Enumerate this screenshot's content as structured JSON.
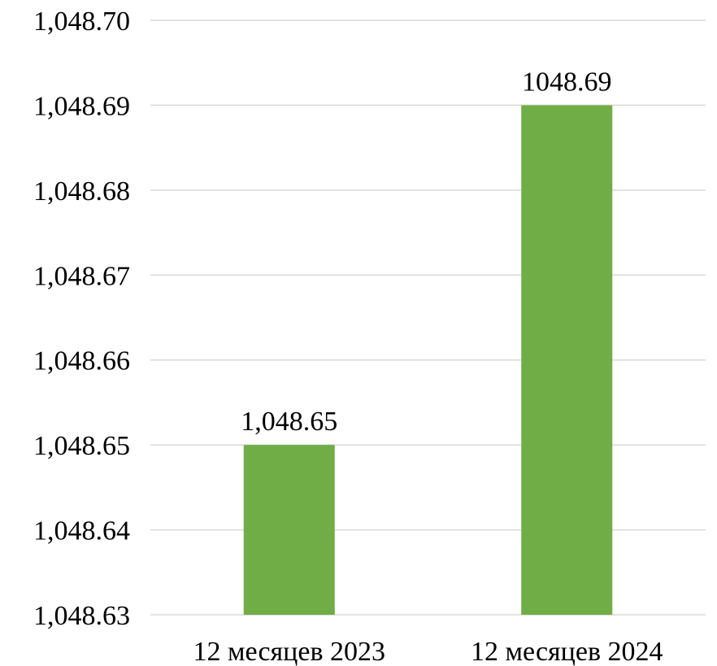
{
  "chart_data": {
    "type": "bar",
    "categories": [
      "12 месяцев 2023",
      "12 месяцев 2024"
    ],
    "values": [
      1048.65,
      1048.69
    ],
    "data_labels": [
      "1,048.65",
      "1048.69"
    ],
    "ylim": [
      1048.63,
      1048.7
    ],
    "yticks": [
      1048.63,
      1048.64,
      1048.65,
      1048.66,
      1048.67,
      1048.68,
      1048.69,
      1048.7
    ],
    "ytick_labels": [
      "1,048.63",
      "1,048.64",
      "1,048.65",
      "1,048.66",
      "1,048.67",
      "1,048.68",
      "1,048.69",
      "1,048.70"
    ],
    "grid": true,
    "legend": "none",
    "colors": {
      "bar": "#70ad47",
      "grid": "#d9d9d9",
      "text": "#000000"
    }
  }
}
